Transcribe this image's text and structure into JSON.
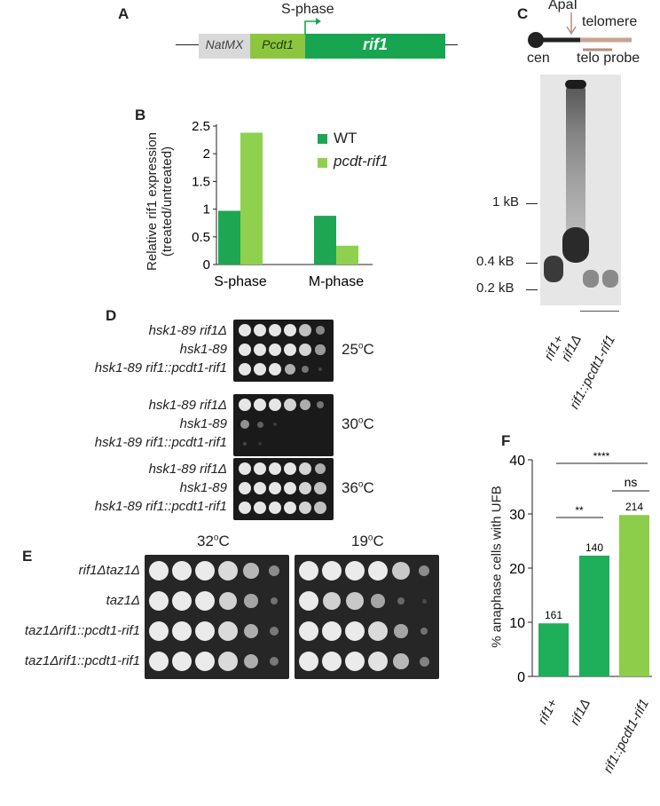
{
  "panels": {
    "a": "A",
    "b": "B",
    "c": "C",
    "d": "D",
    "e": "E",
    "f": "F"
  },
  "panel_a": {
    "natmx": "NatMX",
    "pcdt1": "Pcdt1",
    "rif1": "rif1",
    "sphase": "S-phase",
    "colors": {
      "natmx": "#d9d9d9",
      "pcdt1": "#8cc63f",
      "rif1": "#18a550",
      "arrow": "#18a550"
    }
  },
  "panel_b": {
    "ylabel_line1": "Relative rif1 expression",
    "ylabel_line2": "(treated/untreated)",
    "legend_wt": "WT",
    "legend_mut": "pcdt-rif1",
    "chart_data": {
      "type": "bar",
      "categories": [
        "S-phase",
        "M-phase"
      ],
      "series": [
        {
          "name": "WT",
          "values": [
            0.97,
            0.88
          ],
          "color": "#1fa653"
        },
        {
          "name": "pcdt-rif1",
          "values": [
            2.38,
            0.34
          ],
          "color": "#8fd14f"
        }
      ],
      "yticks": [
        "0",
        "0.5",
        "1",
        "1.5",
        "2",
        "2.5"
      ],
      "ylim": [
        0,
        2.5
      ]
    }
  },
  "panel_c": {
    "apai": "ApaI",
    "telomere": "telomere",
    "cen": "cen",
    "telo_probe": "telo probe",
    "marker_1kb": "1 kB",
    "marker_04kb": "0.4 kB",
    "marker_02kb": "0.2 kB",
    "lanes": [
      "rif1+",
      "rif1Δ",
      "rif1::pcdt1-rif1"
    ]
  },
  "panel_d": {
    "groups": [
      {
        "temp": "25",
        "rows": [
          "hsk1-89 rif1Δ",
          "hsk1-89",
          "hsk1-89 rif1::pcdt1-rif1"
        ]
      },
      {
        "temp": "30",
        "rows": [
          "hsk1-89 rif1Δ",
          "hsk1-89",
          "hsk1-89 rif1::pcdt1-rif1"
        ]
      },
      {
        "temp": "36",
        "rows": [
          "hsk1-89 rif1Δ",
          "hsk1-89",
          "hsk1-89 rif1::pcdt1-rif1"
        ]
      }
    ],
    "deg": "o",
    "unit": "C"
  },
  "panel_e": {
    "temps": [
      "32",
      "19"
    ],
    "deg": "o",
    "unit": "C",
    "rows": [
      "rif1Δtaz1Δ",
      "taz1Δ",
      "taz1Δrif1::pcdt1-rif1",
      "taz1Δrif1::pcdt1-rif1"
    ]
  },
  "panel_f": {
    "ylabel": "% anaphase cells with UFB",
    "sig_all": "****",
    "sig_12": "**",
    "sig_23": "ns",
    "chart_data": {
      "type": "bar",
      "categories": [
        "rif1+",
        "rif1Δ",
        "rif1::pcdt1-rif1"
      ],
      "values": [
        9.8,
        22.3,
        29.8
      ],
      "counts": [
        "161",
        "140",
        "214"
      ],
      "colors": [
        "#1fae5a",
        "#1fae5a",
        "#8ccd49"
      ],
      "yticks": [
        "0",
        "10",
        "20",
        "30",
        "40"
      ],
      "ylim": [
        0,
        40
      ]
    }
  }
}
